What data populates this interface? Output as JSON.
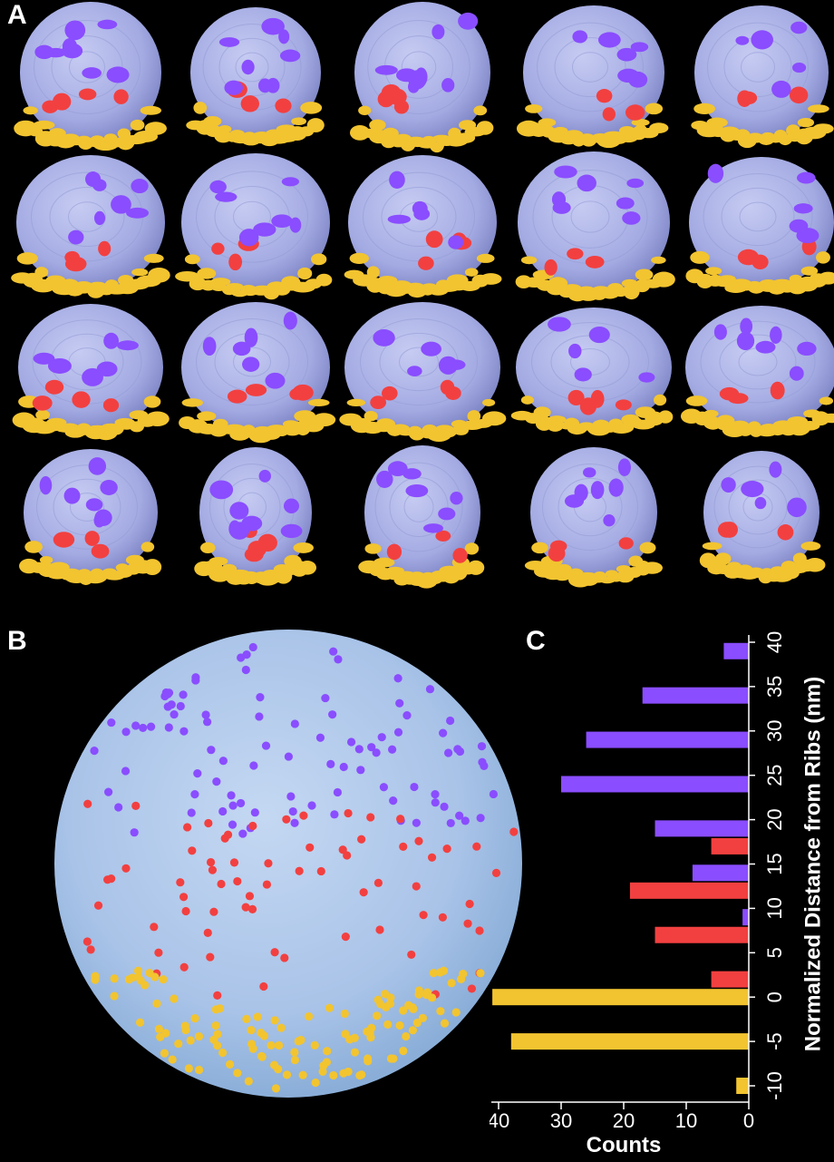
{
  "panels": {
    "a_label": "A",
    "b_label": "B",
    "c_label": "C"
  },
  "colors": {
    "top": "#8a4dff",
    "mid": "#f24040",
    "bottom": "#f2c430",
    "body": "#a7aee6",
    "sphere": "#aac8ea"
  },
  "chart_data": {
    "type": "bar",
    "orientation": "horizontal",
    "xlabel": "Counts",
    "ylabel": "Normalized Distance from Ribs (nm)",
    "x_ticks": [
      "40",
      "30",
      "20",
      "10",
      "0"
    ],
    "y_ticks": [
      "-10",
      "-5",
      "0",
      "5",
      "10",
      "15",
      "20",
      "25",
      "30",
      "35",
      "40"
    ],
    "xlim": [
      0,
      42
    ],
    "ylim": [
      -12,
      42
    ],
    "series": [
      {
        "color": "yellow",
        "points": [
          {
            "y": -10,
            "v": 2
          },
          {
            "y": -5,
            "v": 38
          },
          {
            "y": 0,
            "v": 41
          }
        ]
      },
      {
        "color": "red",
        "points": [
          {
            "y": 2,
            "v": 6
          },
          {
            "y": 7,
            "v": 15
          },
          {
            "y": 12,
            "v": 19
          },
          {
            "y": 17,
            "v": 6
          }
        ]
      },
      {
        "color": "purple",
        "points": [
          {
            "y": 9,
            "v": 1
          },
          {
            "y": 14,
            "v": 9
          },
          {
            "y": 19,
            "v": 15
          },
          {
            "y": 24,
            "v": 30
          },
          {
            "y": 29,
            "v": 26
          },
          {
            "y": 34,
            "v": 17
          },
          {
            "y": 39,
            "v": 4
          }
        ]
      }
    ]
  }
}
